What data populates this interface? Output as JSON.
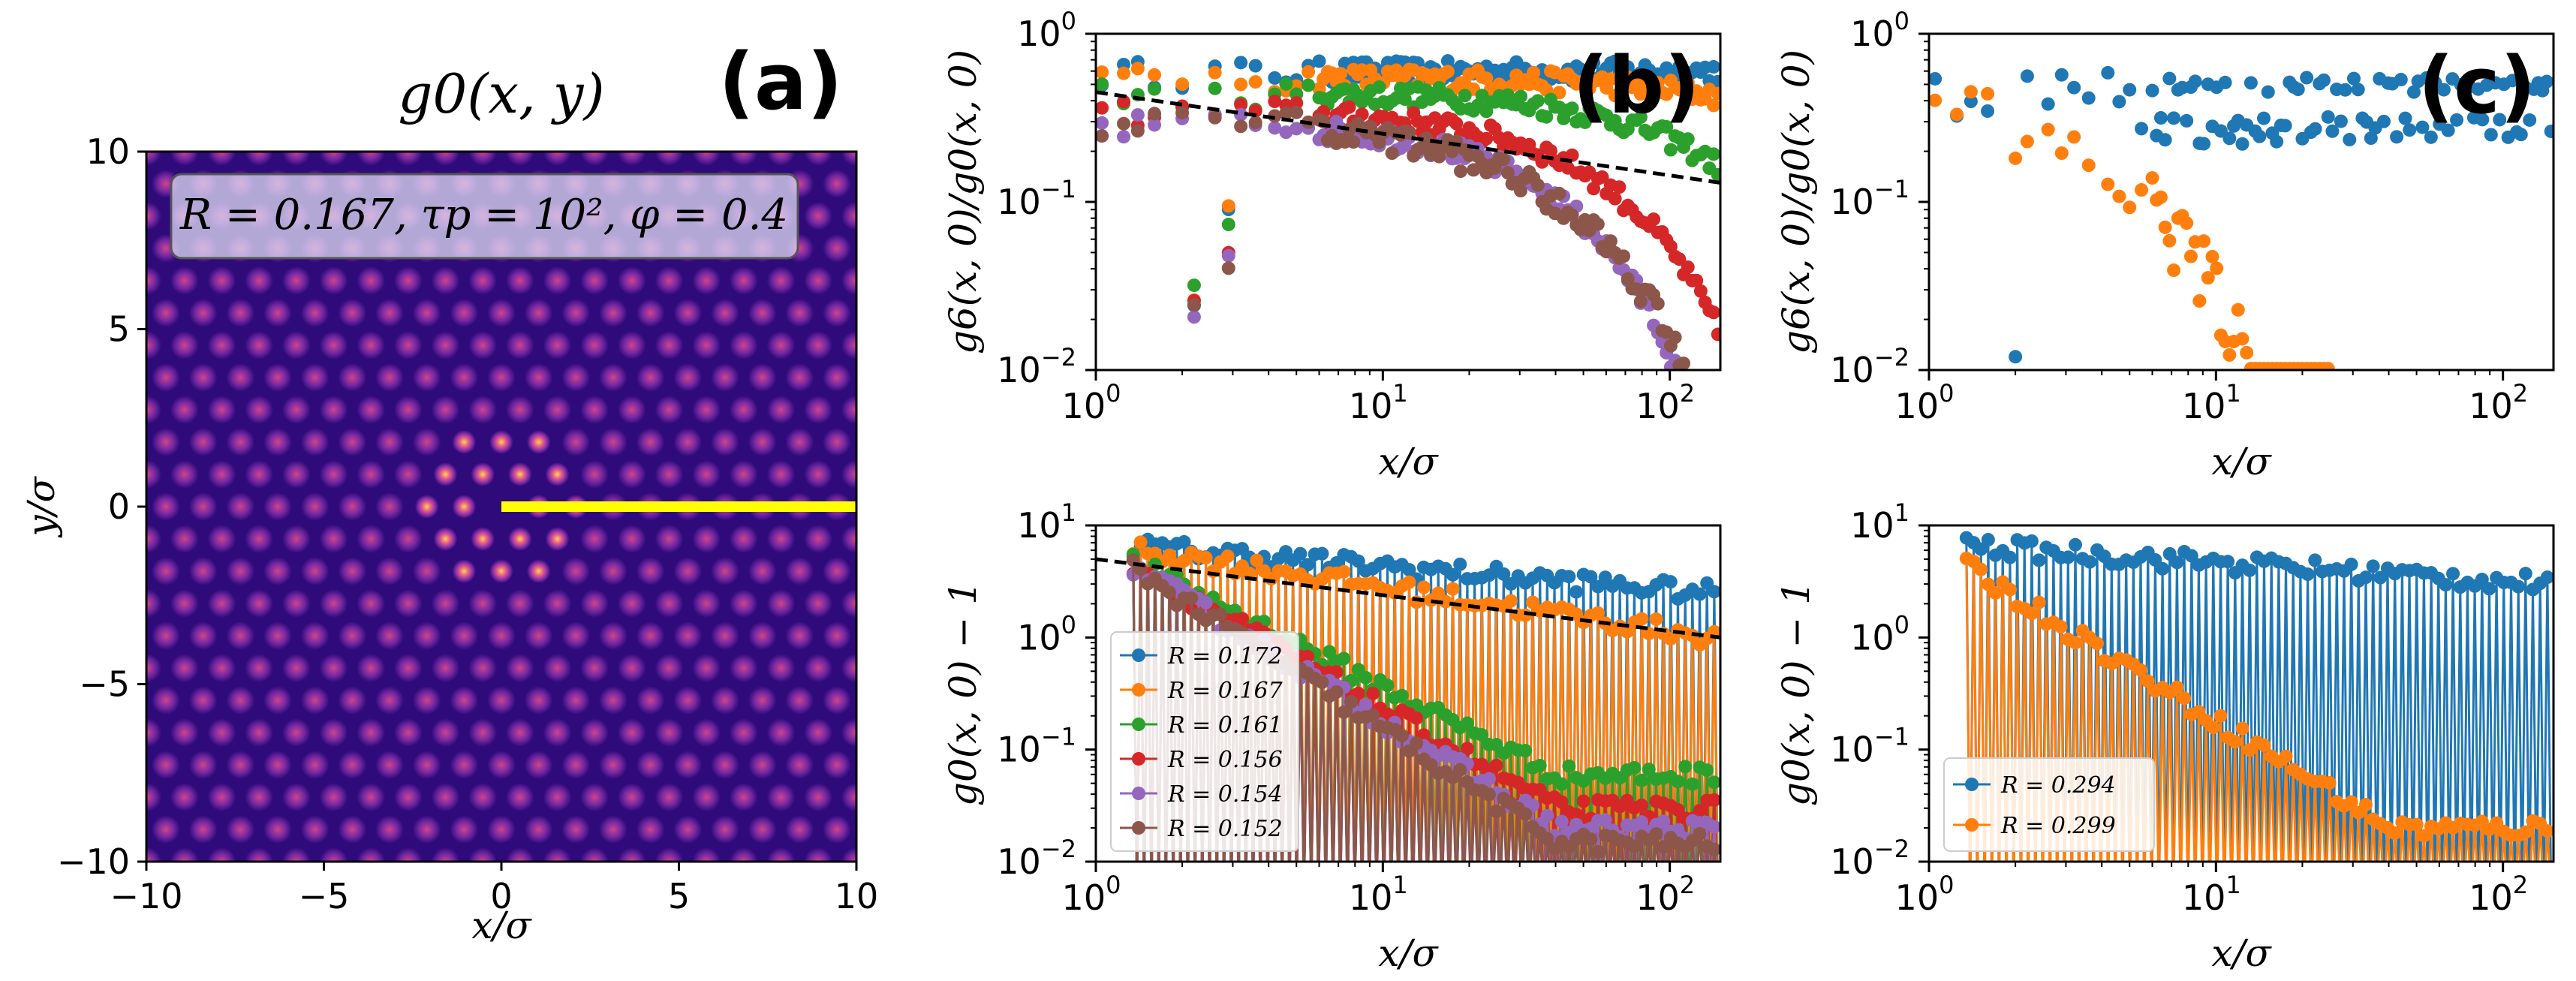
{
  "chart_data": [
    {
      "id": "a",
      "type": "heatmap",
      "panel_label": "(a)",
      "title": "g0(x, y)",
      "annotation": "R = 0.167, τp = 10², φ = 0.4",
      "xlabel": "x/σ",
      "ylabel": "y/σ",
      "xlim": [
        -10,
        10
      ],
      "ylim": [
        -10,
        10
      ],
      "xticks": [
        "−10",
        "−5",
        "0",
        "5",
        "10"
      ],
      "yticks": [
        "−10",
        "−5",
        "0",
        "5",
        "10"
      ],
      "lattice_spacing": 1.05,
      "cut_line": {
        "from": [
          0,
          0
        ],
        "to": [
          10,
          0
        ],
        "color": "#ffff00"
      },
      "colors": {
        "background": "#2e0a7a",
        "peak": "#f5c842",
        "mid": "#c23b9e"
      }
    },
    {
      "id": "b_top",
      "type": "scatter",
      "panel_label": "(b)",
      "ylabel": "g6(x, 0)/g0(x, 0)",
      "xlabel": "x/σ",
      "xlim": [
        1,
        150
      ],
      "ylim": [
        0.01,
        1
      ],
      "xscale": "log",
      "yscale": "log",
      "xticks": [
        "10",
        "10",
        "10"
      ],
      "xtick_exps": [
        "0",
        "1",
        "2"
      ],
      "yticks": [
        "10",
        "10",
        "10"
      ],
      "ytick_exps": [
        "−2",
        "−1",
        "0"
      ],
      "dashed_fit": {
        "x": [
          1,
          150
        ],
        "y": [
          0.45,
          0.13
        ]
      },
      "series": [
        {
          "name": "R = 0.172",
          "color": "#1f77b4",
          "plateau": 0.6,
          "decay": 0
        },
        {
          "name": "R = 0.167",
          "color": "#ff7f0e",
          "plateau": 0.55,
          "decay": 0.01
        },
        {
          "name": "R = 0.161",
          "color": "#2ca02c",
          "plateau": 0.45,
          "decay": 0.04
        },
        {
          "name": "R = 0.156",
          "color": "#d62728",
          "plateau": 0.35,
          "decay": 0.12
        },
        {
          "name": "R = 0.154",
          "color": "#9467bd",
          "plateau": 0.3,
          "decay": 0.2
        },
        {
          "name": "R = 0.152",
          "color": "#8c564b",
          "plateau": 0.3,
          "decay": 0.55
        }
      ]
    },
    {
      "id": "b_bottom",
      "type": "line",
      "ylabel": "g0(x, 0) − 1",
      "xlabel": "x/σ",
      "xlim": [
        1,
        150
      ],
      "ylim": [
        0.01,
        10
      ],
      "xscale": "log",
      "yscale": "log",
      "xticks": [
        "10",
        "10",
        "10"
      ],
      "xtick_exps": [
        "0",
        "1",
        "2"
      ],
      "yticks": [
        "10",
        "10",
        "10",
        "10"
      ],
      "ytick_exps": [
        "−2",
        "−1",
        "0",
        "1"
      ],
      "dashed_fit": {
        "x": [
          1,
          150
        ],
        "y": [
          5,
          1
        ]
      },
      "legend_position": "lower-left",
      "series": [
        {
          "name": "R = 0.172",
          "color": "#1f77b4",
          "env_end": 2.5
        },
        {
          "name": "R = 0.167",
          "color": "#ff7f0e",
          "env_end": 1.0
        },
        {
          "name": "R = 0.161",
          "color": "#2ca02c",
          "env_end": 0.06
        },
        {
          "name": "R = 0.156",
          "color": "#d62728",
          "env_end": 0.03
        },
        {
          "name": "R = 0.154",
          "color": "#9467bd",
          "env_end": 0.02
        },
        {
          "name": "R = 0.152",
          "color": "#8c564b",
          "env_end": 0.015
        }
      ]
    },
    {
      "id": "c_top",
      "type": "scatter",
      "panel_label": "(c)",
      "ylabel": "g6(x, 0)/g0(x, 0)",
      "xlabel": "x/σ",
      "xlim": [
        1,
        150
      ],
      "ylim": [
        0.01,
        1
      ],
      "xscale": "log",
      "yscale": "log",
      "xticks": [
        "10",
        "10",
        "10"
      ],
      "xtick_exps": [
        "0",
        "1",
        "2"
      ],
      "yticks": [
        "10",
        "10",
        "10"
      ],
      "ytick_exps": [
        "−2",
        "−1",
        "0"
      ],
      "series": [
        {
          "name": "R = 0.294",
          "color": "#1f77b4",
          "plateau": 0.4
        },
        {
          "name": "R = 0.299",
          "color": "#ff7f0e",
          "plateau": 0.3
        }
      ]
    },
    {
      "id": "c_bottom",
      "type": "line",
      "ylabel": "g0(x, 0) − 1",
      "xlabel": "x/σ",
      "xlim": [
        1,
        150
      ],
      "ylim": [
        0.01,
        10
      ],
      "xscale": "log",
      "yscale": "log",
      "xticks": [
        "10",
        "10",
        "10"
      ],
      "xtick_exps": [
        "0",
        "1",
        "2"
      ],
      "yticks": [
        "10",
        "10",
        "10",
        "10"
      ],
      "ytick_exps": [
        "−2",
        "−1",
        "0",
        "1"
      ],
      "legend_position": "lower-left",
      "series": [
        {
          "name": "R = 0.294",
          "color": "#1f77b4",
          "env_end": 3.0
        },
        {
          "name": "R = 0.299",
          "color": "#ff7f0e",
          "env_end": 0.02
        }
      ]
    }
  ]
}
